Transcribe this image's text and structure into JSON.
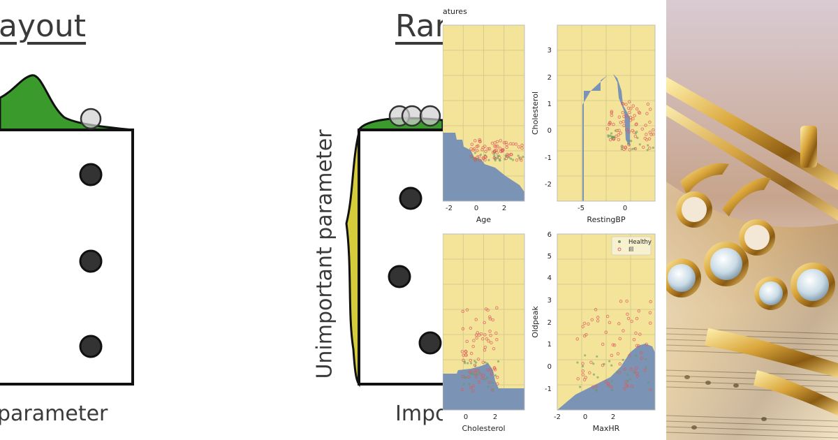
{
  "left_slide": {
    "title_fragment": "ayout",
    "xlabel_fragment": "parameter"
  },
  "middle_slide": {
    "title_fragment": "Rar",
    "ylabel": "Unimportant parameter",
    "xlabel_fragment": "Impo"
  },
  "figure": {
    "title_fragment": "atures",
    "colors": {
      "healthy_region": "#7b93b5",
      "ill_region": "#f3e49a",
      "healthy_point": "#6a9a5f",
      "ill_point": "#e05a5a"
    },
    "legend": [
      "Healthy",
      "Ill"
    ],
    "subplots": [
      {
        "id": "age",
        "xlabel": "Age",
        "ylabel": "",
        "xticks": [
          "-2",
          "0",
          "2"
        ],
        "yticks": []
      },
      {
        "id": "restingbp",
        "xlabel": "RestingBP",
        "ylabel": "Cholesterol",
        "xticks": [
          "-5",
          "0"
        ],
        "yticks": [
          "3",
          "2",
          "1",
          "0",
          "-1",
          "-2"
        ]
      },
      {
        "id": "cholesterol",
        "xlabel": "Cholesterol",
        "ylabel": "",
        "xticks": [
          "0",
          "2"
        ],
        "yticks": []
      },
      {
        "id": "maxhr",
        "xlabel": "MaxHR",
        "ylabel": "Oldpeak",
        "xticks": [
          "-2",
          "0",
          "2"
        ],
        "yticks": [
          "6",
          "5",
          "4",
          "3",
          "2",
          "1",
          "0",
          "-1"
        ]
      }
    ]
  },
  "photo": {
    "subject": "saxophone-keys-on-sheet-music"
  }
}
